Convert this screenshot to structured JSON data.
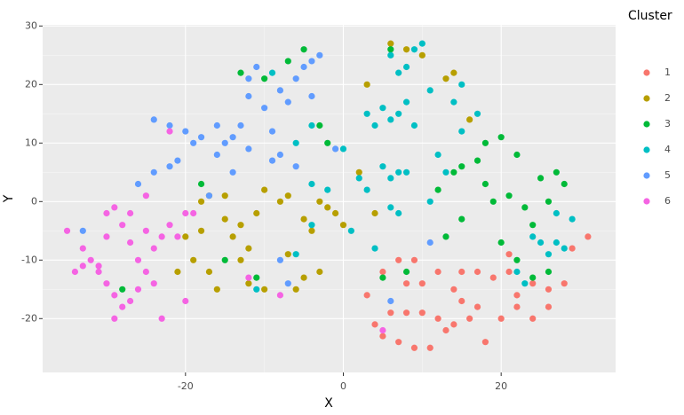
{
  "chart_data": {
    "type": "scatter",
    "xlabel": "X",
    "ylabel": "Y",
    "legend_title": "Cluster",
    "legend": "right",
    "grid": true,
    "xlim": [
      -38.1,
      34.5
    ],
    "ylim": [
      -29.2,
      30.2
    ],
    "xticks": [
      -20,
      0,
      20
    ],
    "yticks": [
      -20,
      -10,
      0,
      10,
      20,
      30
    ],
    "series": [
      {
        "name": "1",
        "color": "#F8766D",
        "x": [
          5,
          7,
          9,
          10,
          12,
          14,
          15,
          17,
          19,
          21,
          22,
          24,
          26,
          28,
          29,
          31,
          26,
          24,
          20,
          16,
          14,
          12,
          10,
          8,
          6,
          4,
          5,
          7,
          9,
          11,
          13,
          17,
          18,
          22,
          15,
          8,
          3,
          21
        ],
        "y": [
          -12,
          -10,
          -10,
          -14,
          -12,
          -15,
          -12,
          -12,
          -13,
          -12,
          -16,
          -14,
          -15,
          -14,
          -8,
          -6,
          -18,
          -20,
          -20,
          -20,
          -21,
          -20,
          -19,
          -19,
          -19,
          -21,
          -23,
          -24,
          -25,
          -25,
          -22,
          -18,
          -24,
          -18,
          -17,
          -14,
          -16,
          -9
        ]
      },
      {
        "name": "2",
        "color": "#B79F00",
        "x": [
          -20,
          -18,
          -19,
          -17,
          -15,
          -14,
          -13,
          -12,
          -11,
          -13,
          -12,
          -10,
          -16,
          -18,
          -17,
          -15,
          -10,
          -8,
          -7,
          -5,
          -4,
          -2,
          -3,
          -1,
          -5,
          -3,
          -6,
          -7,
          0,
          2,
          4,
          3,
          6,
          8,
          10,
          14,
          16,
          13,
          -21
        ],
        "y": [
          -6,
          -5,
          -10,
          -12,
          -3,
          -6,
          -4,
          -8,
          -2,
          -10,
          -14,
          -15,
          -15,
          0,
          1,
          1,
          2,
          0,
          1,
          -3,
          -5,
          -1,
          0,
          -2,
          -13,
          -12,
          -15,
          -9,
          -4,
          5,
          -2,
          20,
          27,
          26,
          25,
          22,
          14,
          21,
          -12
        ]
      },
      {
        "name": "3",
        "color": "#00BA38",
        "x": [
          -13,
          -10,
          -7,
          -5,
          -3,
          -2,
          -18,
          -15,
          -11,
          12,
          14,
          15,
          17,
          18,
          20,
          22,
          18,
          19,
          21,
          23,
          25,
          27,
          28,
          26,
          24,
          20,
          22,
          24,
          26,
          15,
          13,
          8,
          5,
          -28,
          6
        ],
        "y": [
          22,
          21,
          24,
          26,
          13,
          10,
          3,
          -10,
          -13,
          2,
          5,
          6,
          7,
          10,
          11,
          8,
          3,
          0,
          1,
          -1,
          4,
          5,
          3,
          0,
          -4,
          -7,
          -10,
          -13,
          -12,
          -3,
          -6,
          -12,
          -13,
          -15,
          26
        ]
      },
      {
        "name": "4",
        "color": "#00BFC4",
        "x": [
          3,
          5,
          6,
          7,
          8,
          9,
          4,
          5,
          6,
          7,
          8,
          3,
          2,
          6,
          7,
          1,
          4,
          6,
          8,
          9,
          10,
          7,
          11,
          14,
          15,
          17,
          15,
          12,
          13,
          11,
          25,
          26,
          27,
          28,
          29,
          27,
          24,
          -4,
          -6,
          -9,
          -11,
          -6,
          -4,
          0,
          22,
          23,
          -2,
          -4
        ],
        "y": [
          15,
          16,
          14,
          15,
          17,
          13,
          13,
          6,
          4,
          5,
          5,
          2,
          4,
          -1,
          -2,
          -5,
          -8,
          25,
          23,
          26,
          27,
          22,
          19,
          17,
          20,
          15,
          12,
          8,
          5,
          0,
          -7,
          -9,
          -7,
          -8,
          -3,
          -2,
          -6,
          13,
          10,
          22,
          -15,
          -9,
          -4,
          9,
          -12,
          -14,
          2,
          3
        ]
      },
      {
        "name": "5",
        "color": "#619CFF",
        "x": [
          -22,
          -20,
          -21,
          -22,
          -24,
          -26,
          -24,
          -19,
          -16,
          -15,
          -16,
          -14,
          -12,
          -13,
          -12,
          -10,
          -12,
          -11,
          -8,
          -7,
          -9,
          -8,
          -9,
          -6,
          -5,
          -4,
          -3,
          -6,
          -4,
          -14,
          -18,
          -1,
          -33,
          11,
          -8,
          6,
          -17,
          -7
        ],
        "y": [
          13,
          12,
          7,
          6,
          5,
          3,
          14,
          10,
          13,
          10,
          8,
          11,
          9,
          13,
          18,
          16,
          21,
          23,
          19,
          17,
          12,
          8,
          7,
          6,
          23,
          24,
          25,
          21,
          18,
          5,
          11,
          9,
          -5,
          -7,
          -10,
          -17,
          1,
          -14
        ]
      },
      {
        "name": "6",
        "color": "#F564E3",
        "x": [
          -35,
          -33,
          -32,
          -31,
          -30,
          -30,
          -29,
          -28,
          -27,
          -26,
          -25,
          -26,
          -27,
          -28,
          -30,
          -29,
          -31,
          -33,
          -34,
          -24,
          -23,
          -24,
          -25,
          -22,
          -21,
          -20,
          -19,
          -25,
          -22,
          -27,
          -29,
          -23,
          -20,
          -12,
          -8,
          5
        ],
        "y": [
          -5,
          -8,
          -10,
          -12,
          -6,
          -14,
          -16,
          -18,
          -17,
          -15,
          -12,
          -10,
          -7,
          -4,
          -2,
          -1,
          -11,
          -11,
          -12,
          -8,
          -6,
          -14,
          -5,
          -4,
          -6,
          -2,
          -2,
          1,
          12,
          -2,
          -20,
          -20,
          -17,
          -13,
          -16,
          -22
        ]
      }
    ]
  }
}
